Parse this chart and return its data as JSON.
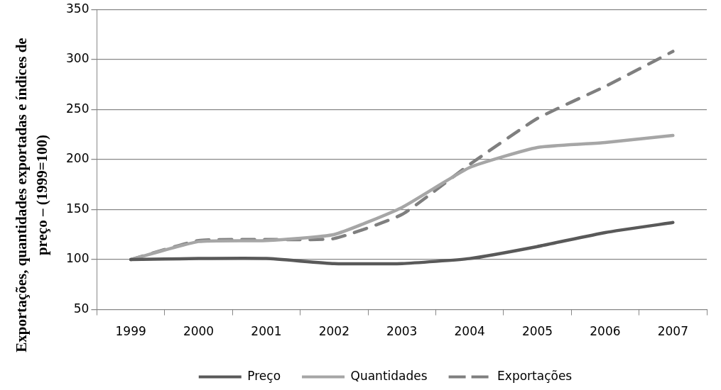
{
  "chart_data": {
    "type": "line",
    "ylabel": "Exportações, quantidades exportadas e índices de preço – (1999=100)",
    "categories": [
      "1999",
      "2000",
      "2001",
      "2002",
      "2003",
      "2004",
      "2005",
      "2006",
      "2007"
    ],
    "series": [
      {
        "name": "Preço",
        "color": "#595959",
        "line_style": "solid",
        "values": [
          100,
          101,
          101,
          96,
          96,
          101,
          113,
          127,
          137
        ]
      },
      {
        "name": "Quantidades",
        "color": "#a6a6a6",
        "line_style": "solid",
        "values": [
          100,
          118,
          119,
          125,
          152,
          192,
          212,
          217,
          224
        ]
      },
      {
        "name": "Exportações",
        "color": "#7f7f7f",
        "line_style": "dashed",
        "values": [
          100,
          119,
          120,
          121,
          145,
          195,
          241,
          273,
          308
        ]
      }
    ],
    "ylim": [
      50,
      350
    ],
    "yticks": [
      50,
      100,
      150,
      200,
      250,
      300,
      350
    ],
    "grid": "y",
    "legend": "bottom",
    "marker": "none"
  }
}
